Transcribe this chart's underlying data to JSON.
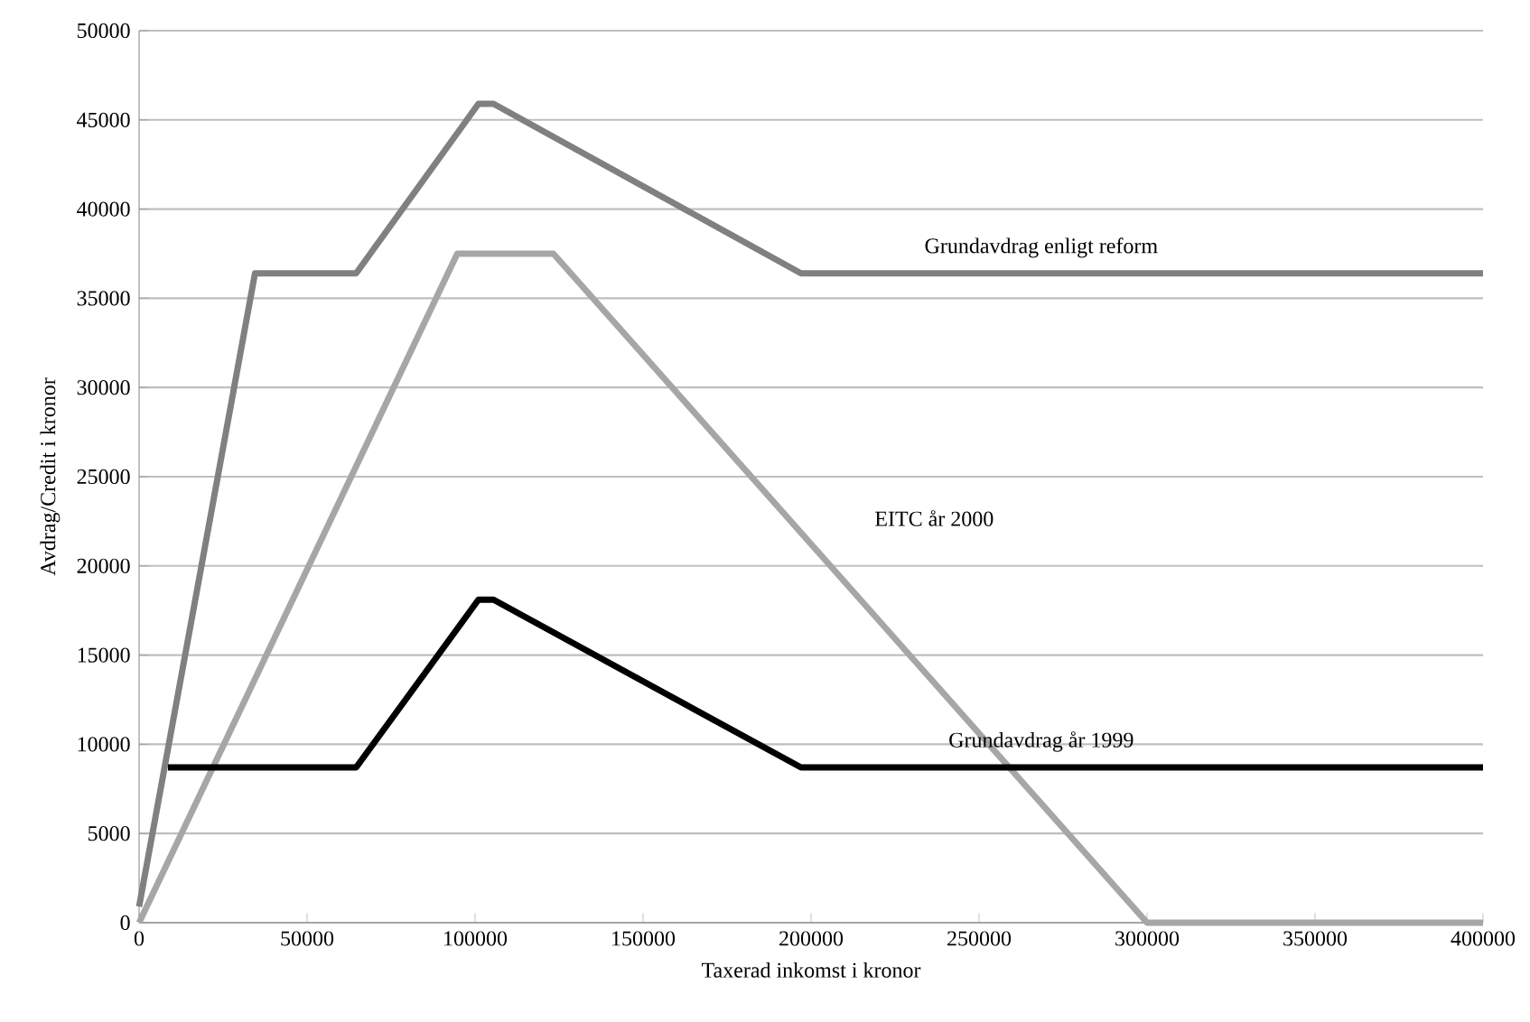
{
  "chart_data": {
    "type": "line",
    "xlabel": "Taxerad inkomst i kronor",
    "ylabel": "Avdrag/Credit i kronor",
    "xlim": [
      0,
      400000
    ],
    "ylim": [
      0,
      50000
    ],
    "xticks": [
      0,
      50000,
      100000,
      150000,
      200000,
      250000,
      300000,
      350000,
      400000
    ],
    "yticks": [
      0,
      5000,
      10000,
      15000,
      20000,
      25000,
      30000,
      35000,
      40000,
      45000,
      50000
    ],
    "grid": "y",
    "legend": false,
    "marker": "none",
    "line_style": "solid",
    "series": [
      {
        "name": "Grundavdrag enligt reform",
        "color": "#808080",
        "x": [
          0,
          34500,
          64600,
          101000,
          105500,
          197000,
          400000
        ],
        "values": [
          900,
          36400,
          36400,
          45900,
          45900,
          36400,
          36400
        ]
      },
      {
        "name": "EITC år 2000",
        "color": "#a6a6a6",
        "x": [
          0,
          94700,
          123300,
          300000,
          400000
        ],
        "values": [
          0,
          37500,
          37500,
          0,
          0
        ]
      },
      {
        "name": "Grundavdrag år 1999",
        "color": "#000000",
        "x": [
          8600,
          64600,
          101000,
          105500,
          197000,
          400000
        ],
        "values": [
          8700,
          8700,
          18100,
          18100,
          8700,
          8700
        ]
      }
    ]
  }
}
